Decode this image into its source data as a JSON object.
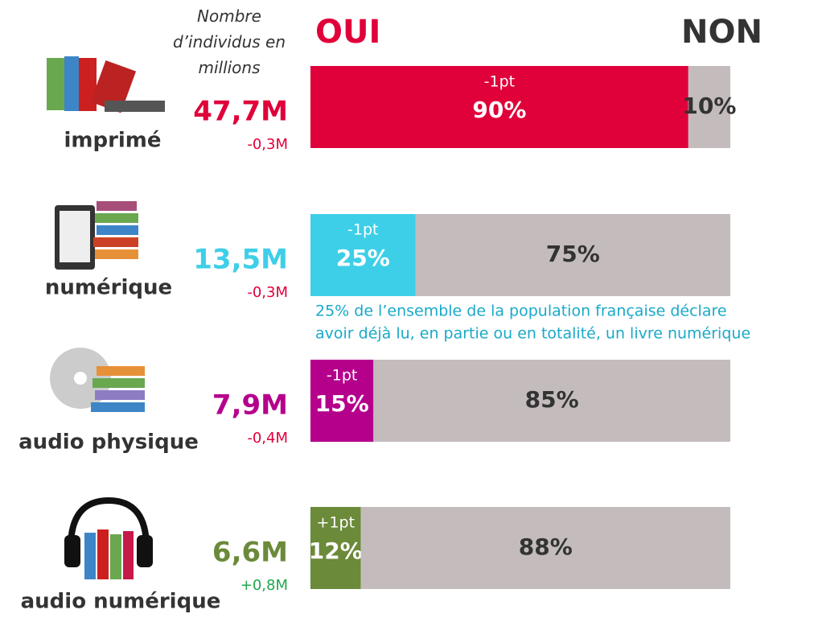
{
  "chart_data": {
    "type": "stacked_bar",
    "subtitle": "Nombre d’individus en millions",
    "categories": [
      "imprimé",
      "numérique",
      "audio physique",
      "audio numérique"
    ],
    "xlim": [
      0,
      100
    ],
    "series": [
      {
        "name": "OUI",
        "color": "#e0003a",
        "colors": [
          "#e0003a",
          "#3ecfe8",
          "#b5008c",
          "#6b8a3a"
        ],
        "values": [
          90,
          25,
          15,
          12
        ],
        "value_labels": [
          "90%",
          "25%",
          "15%",
          "12%"
        ],
        "changes": {
          "values": [
            -1,
            -1,
            -1,
            1
          ],
          "value_labels": [
            "-1pt",
            "-1pt",
            "-1pt",
            "+1pt"
          ]
        }
      },
      {
        "name": "NON",
        "color": "#c4bcbc",
        "label_color": "#333333",
        "values": [
          10,
          75,
          85,
          88
        ],
        "value_labels": [
          "10%",
          "75%",
          "85%",
          "88%"
        ]
      }
    ],
    "counts": {
      "values": [
        47.7,
        13.5,
        7.9,
        6.6
      ],
      "value_labels": [
        "47,7M",
        "13,5M",
        "7,9M",
        "6,6M"
      ]
    },
    "count_changes": {
      "values": [
        -0.3,
        -0.3,
        -0.4,
        0.8
      ],
      "value_labels": [
        "-0,3M",
        "-0,3M",
        "-0,4M",
        "+0,8M"
      ],
      "colors": [
        "#e0003a",
        "#e0003a",
        "#e0003a",
        "#1fa84a"
      ]
    },
    "annotation": [
      "25% de l’ensemble de la population française déclare",
      "avoir déjà lu, en partie ou en totalité, un livre numérique"
    ],
    "annotation_color": "#19a9c9"
  }
}
